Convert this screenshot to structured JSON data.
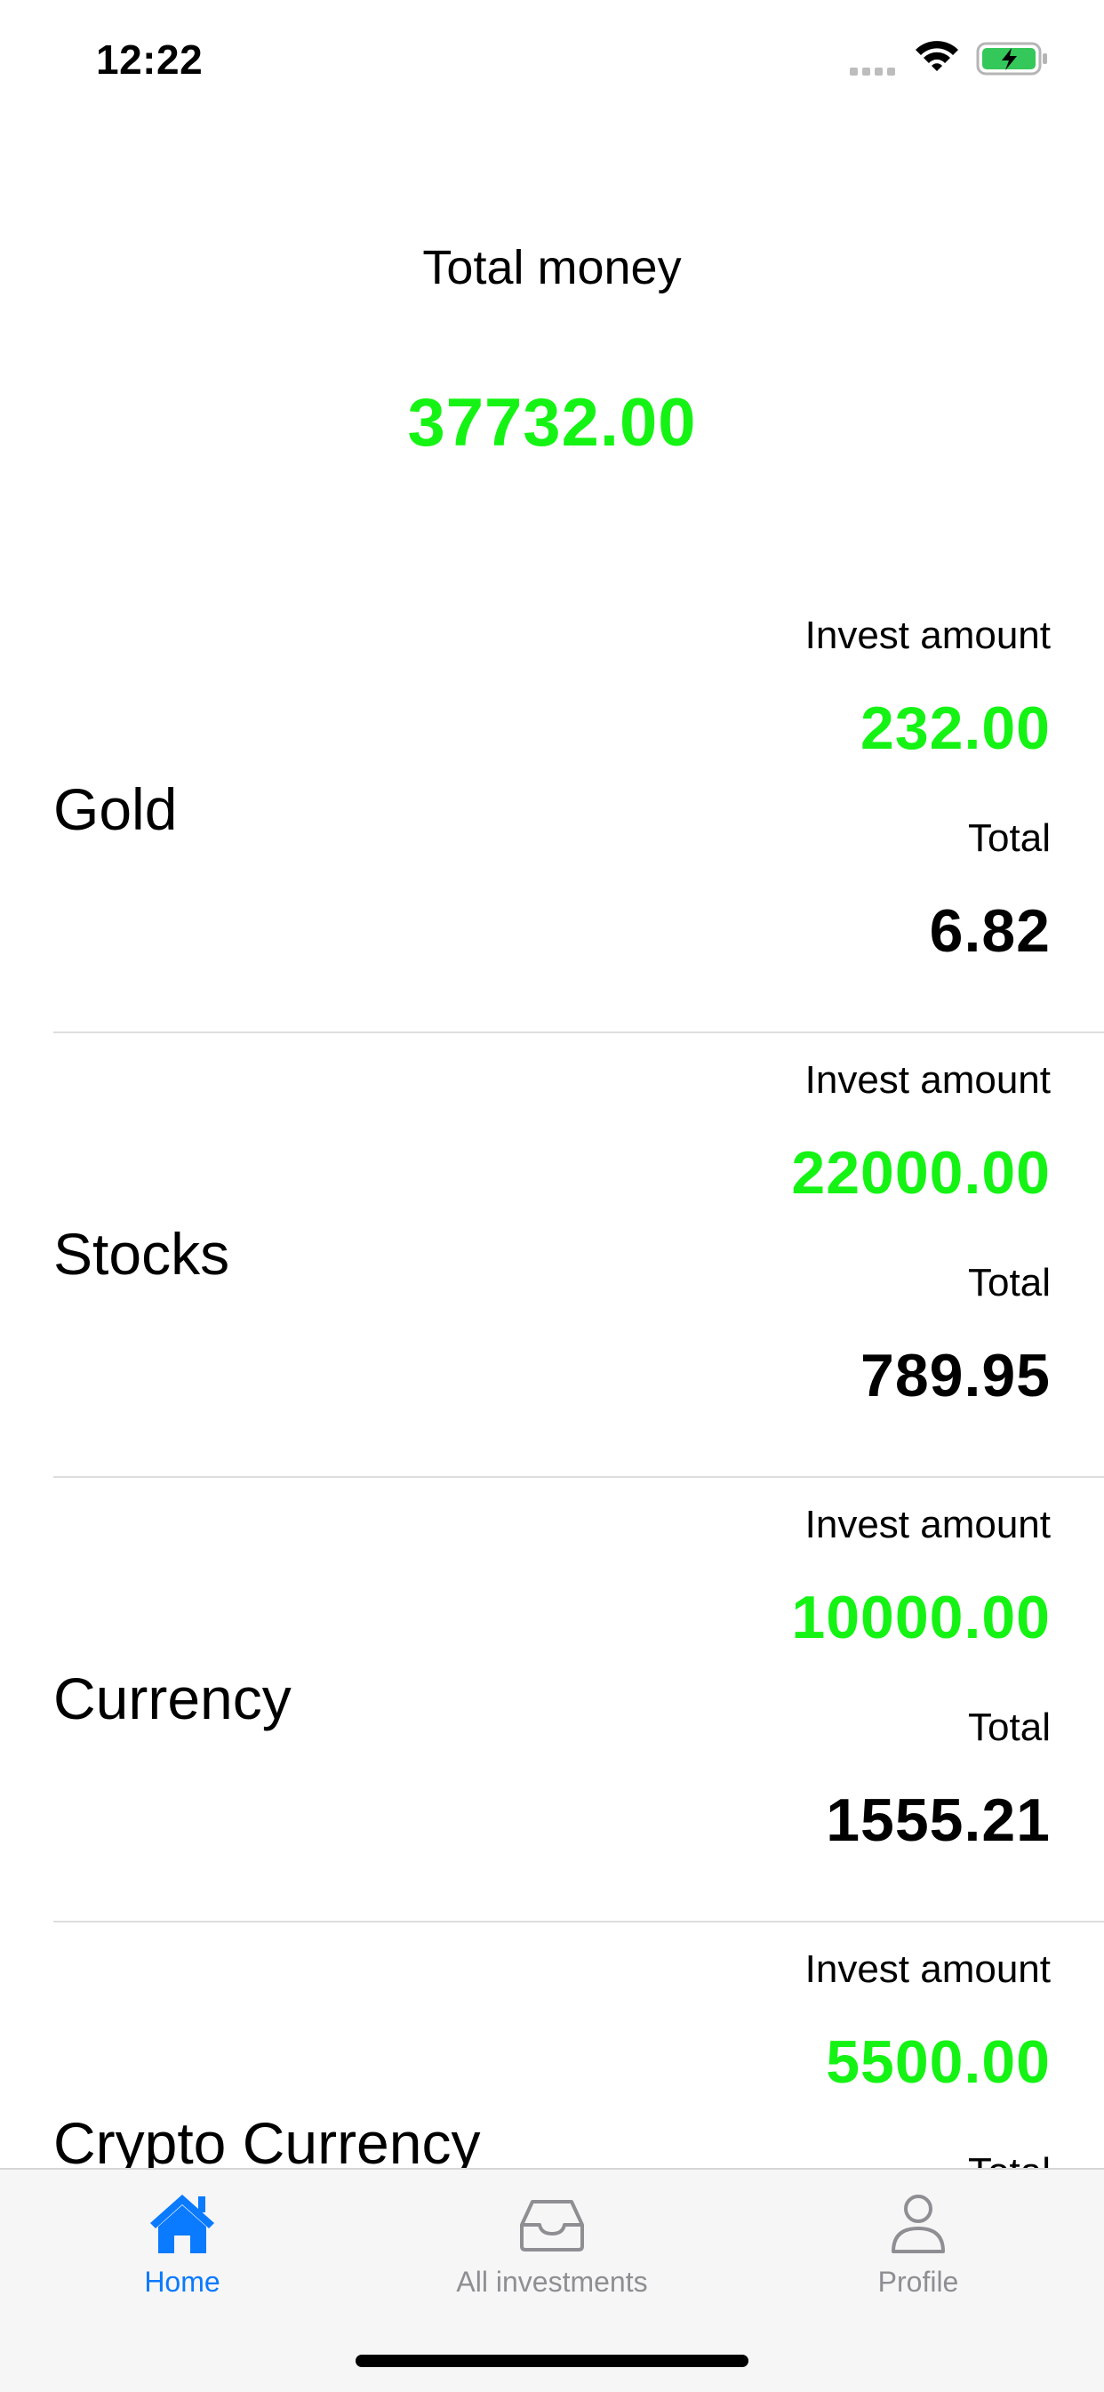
{
  "status_bar": {
    "time": "12:22",
    "icons": [
      "signal-icon",
      "wifi-icon",
      "battery-charging-icon"
    ]
  },
  "header": {
    "title": "Total money",
    "total_value": "37732.00",
    "accent_color": "#14f314"
  },
  "investments": [
    {
      "name": "Gold",
      "invest_label": "Invest amount",
      "invest_amount": "232.00",
      "total_label": "Total",
      "total": "6.82"
    },
    {
      "name": "Stocks",
      "invest_label": "Invest amount",
      "invest_amount": "22000.00",
      "total_label": "Total",
      "total": "789.95"
    },
    {
      "name": "Currency",
      "invest_label": "Invest amount",
      "invest_amount": "10000.00",
      "total_label": "Total",
      "total": "1555.21"
    },
    {
      "name": "Crypto Currency",
      "invest_label": "Invest amount",
      "invest_amount": "5500.00",
      "total_label": "Total",
      "total": ""
    }
  ],
  "tab_bar": {
    "tabs": [
      {
        "label": "Home",
        "icon": "home-icon",
        "active": true
      },
      {
        "label": "All investments",
        "icon": "tray-icon",
        "active": false
      },
      {
        "label": "Profile",
        "icon": "person-icon",
        "active": false
      }
    ],
    "active_color": "#0a7aff",
    "inactive_color": "#8e8e93"
  }
}
